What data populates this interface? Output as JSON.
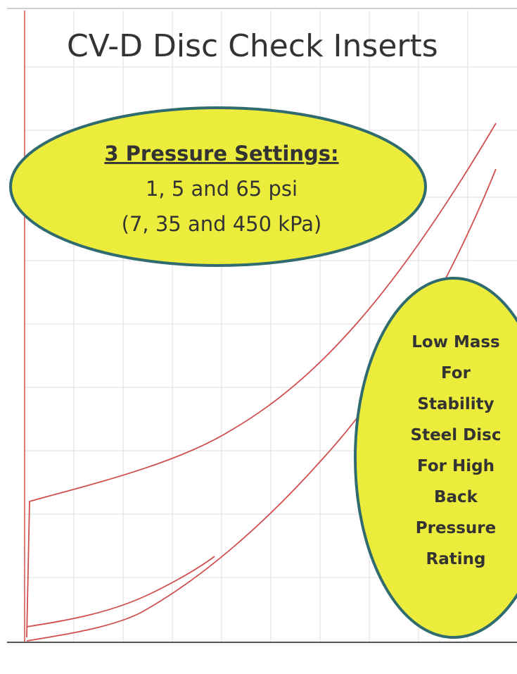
{
  "title": "CV-D Disc Check Inserts",
  "callouts": [
    {
      "heading": "3 Pressure Settings:",
      "lines": [
        "1, 5 and 65 psi",
        "(7, 35 and 450 kPa)"
      ]
    },
    {
      "lines": [
        "Low Mass",
        "For",
        "Stability",
        "Steel Disc",
        "For High",
        "Back",
        "Pressure",
        "Rating"
      ]
    }
  ]
}
